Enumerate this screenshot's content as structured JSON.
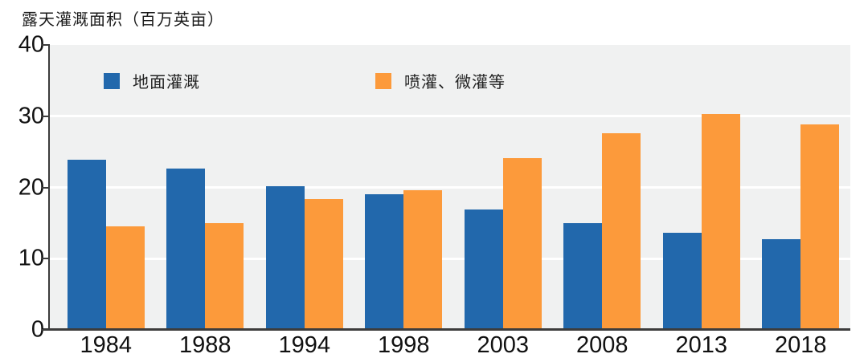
{
  "chart_title": "露天灌溉面积（百万英亩）",
  "chart_data": {
    "type": "bar",
    "title": "露天灌溉面积（百万英亩）",
    "categories": [
      "1984",
      "1988",
      "1994",
      "1998",
      "2003",
      "2008",
      "2013",
      "2018"
    ],
    "series": [
      {
        "name": "地面灌溉",
        "color": "#2268AC",
        "values": [
          23.9,
          22.7,
          20.2,
          19.0,
          16.9,
          15.0,
          13.6,
          12.7
        ]
      },
      {
        "name": "喷灌、微灌等",
        "color": "#FC9A3B",
        "values": [
          14.5,
          15.0,
          18.4,
          19.6,
          24.1,
          27.6,
          30.3,
          28.8
        ]
      }
    ],
    "ylabel": "露天灌溉面积（百万英亩）",
    "ylim": [
      0,
      40
    ],
    "yticks": [
      0,
      10,
      20,
      30,
      40
    ],
    "grid": true,
    "gridline_values": [
      10,
      20,
      30
    ],
    "legend_position": "top-inside",
    "colors": {
      "plot_background": "#F0F1F1",
      "gridline": "#FFFFFF",
      "axis": "#3C3C3C",
      "text": "#111111"
    }
  }
}
